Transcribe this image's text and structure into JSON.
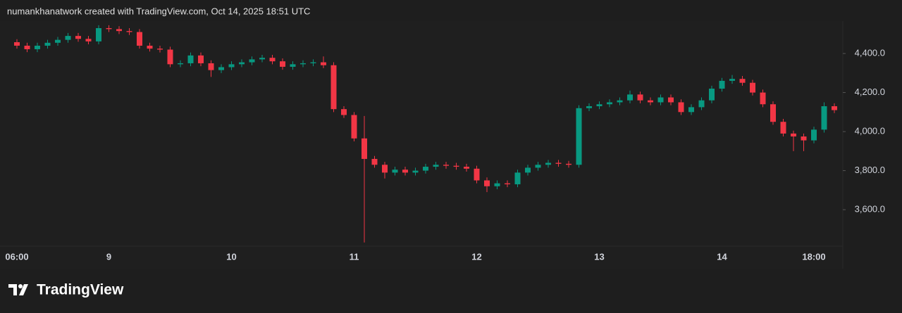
{
  "attribution": "numankhanatwork created with TradingView.com, Oct 14, 2025 18:51 UTC",
  "brand": "TradingView",
  "chart_data": {
    "type": "candlestick",
    "categories": [
      "06:00",
      null,
      null,
      null,
      null,
      null,
      null,
      null,
      null,
      "9",
      null,
      null,
      null,
      null,
      null,
      null,
      null,
      null,
      null,
      null,
      null,
      "10",
      null,
      null,
      null,
      null,
      null,
      null,
      null,
      null,
      null,
      null,
      null,
      "11",
      null,
      null,
      null,
      null,
      null,
      null,
      null,
      null,
      null,
      null,
      null,
      "12",
      null,
      null,
      null,
      null,
      null,
      null,
      null,
      null,
      null,
      null,
      null,
      "13",
      null,
      null,
      null,
      null,
      null,
      null,
      null,
      null,
      null,
      null,
      null,
      "14",
      null,
      null,
      null,
      null,
      null,
      null,
      null,
      null,
      "18:00",
      null,
      null
    ],
    "open": [
      4458,
      4440,
      4422,
      4440,
      4455,
      4470,
      4490,
      4475,
      4462,
      4530,
      4525,
      4515,
      4510,
      4440,
      4425,
      4420,
      4345,
      4350,
      4390,
      4350,
      4315,
      4330,
      4345,
      4355,
      4370,
      4378,
      4360,
      4332,
      4345,
      4350,
      4355,
      4340,
      4115,
      4085,
      3965,
      3860,
      3830,
      3790,
      3805,
      3790,
      3800,
      3820,
      3830,
      3825,
      3820,
      3810,
      3750,
      3720,
      3735,
      3730,
      3790,
      3815,
      3830,
      3840,
      3835,
      3830,
      4120,
      4130,
      4140,
      4150,
      4160,
      4190,
      4160,
      4150,
      4175,
      4150,
      4100,
      4125,
      4160,
      4220,
      4260,
      4270,
      4250,
      4200,
      4140,
      4050,
      3990,
      3975,
      3955,
      4010,
      4130
    ],
    "high": [
      4473,
      4455,
      4455,
      4470,
      4485,
      4505,
      4505,
      4490,
      4545,
      4545,
      4540,
      4530,
      4525,
      4455,
      4440,
      4435,
      4365,
      4405,
      4405,
      4365,
      4345,
      4360,
      4370,
      4385,
      4393,
      4393,
      4375,
      4360,
      4365,
      4370,
      4385,
      4355,
      4130,
      4100,
      4080,
      3875,
      3845,
      3820,
      3820,
      3815,
      3835,
      3845,
      3845,
      3840,
      3835,
      3825,
      3765,
      3750,
      3750,
      3805,
      3830,
      3845,
      3855,
      3855,
      3850,
      4135,
      4145,
      4155,
      4165,
      4175,
      4210,
      4205,
      4175,
      4190,
      4190,
      4165,
      4140,
      4175,
      4235,
      4275,
      4290,
      4285,
      4265,
      4215,
      4155,
      4065,
      4005,
      3990,
      4025,
      4150,
      4145
    ],
    "low": [
      4425,
      4407,
      4407,
      4425,
      4440,
      4455,
      4460,
      4447,
      4447,
      4510,
      4500,
      4495,
      4425,
      4410,
      4405,
      4330,
      4330,
      4335,
      4335,
      4280,
      4300,
      4315,
      4330,
      4340,
      4355,
      4345,
      4317,
      4317,
      4330,
      4335,
      4325,
      4100,
      4070,
      3950,
      3432,
      3815,
      3760,
      3775,
      3775,
      3775,
      3785,
      3805,
      3810,
      3805,
      3795,
      3735,
      3690,
      3705,
      3715,
      3715,
      3775,
      3800,
      3815,
      3820,
      3815,
      3815,
      4105,
      4115,
      4125,
      4135,
      4145,
      4145,
      4135,
      4135,
      4135,
      4085,
      4085,
      4110,
      4145,
      4205,
      4245,
      4235,
      4185,
      4125,
      4035,
      3975,
      3900,
      3900,
      3940,
      3995,
      4095
    ],
    "close": [
      4440,
      4422,
      4440,
      4455,
      4470,
      4490,
      4475,
      4462,
      4530,
      4525,
      4515,
      4510,
      4440,
      4425,
      4420,
      4345,
      4350,
      4390,
      4350,
      4315,
      4330,
      4345,
      4355,
      4370,
      4378,
      4360,
      4332,
      4345,
      4350,
      4355,
      4340,
      4115,
      4085,
      3965,
      3860,
      3830,
      3790,
      3805,
      3790,
      3800,
      3820,
      3830,
      3825,
      3820,
      3810,
      3750,
      3720,
      3735,
      3730,
      3790,
      3815,
      3830,
      3840,
      3835,
      3830,
      4120,
      4130,
      4140,
      4150,
      4160,
      4190,
      4160,
      4150,
      4175,
      4150,
      4100,
      4125,
      4160,
      4220,
      4260,
      4270,
      4250,
      4200,
      4140,
      4050,
      3990,
      3975,
      3955,
      4010,
      4130,
      4110
    ],
    "up_color": "#089981",
    "down_color": "#f23645",
    "ylim": [
      3413,
      4566
    ],
    "yticks": [
      {
        "value": 3600,
        "label": "3,600.0"
      },
      {
        "value": 3800,
        "label": "3,800.0"
      },
      {
        "value": 4000,
        "label": "4,000.0"
      },
      {
        "value": 4200,
        "label": "4,200.0"
      },
      {
        "value": 4400,
        "label": "4,400.0"
      }
    ],
    "y_axis_side": "right",
    "grid": false
  }
}
